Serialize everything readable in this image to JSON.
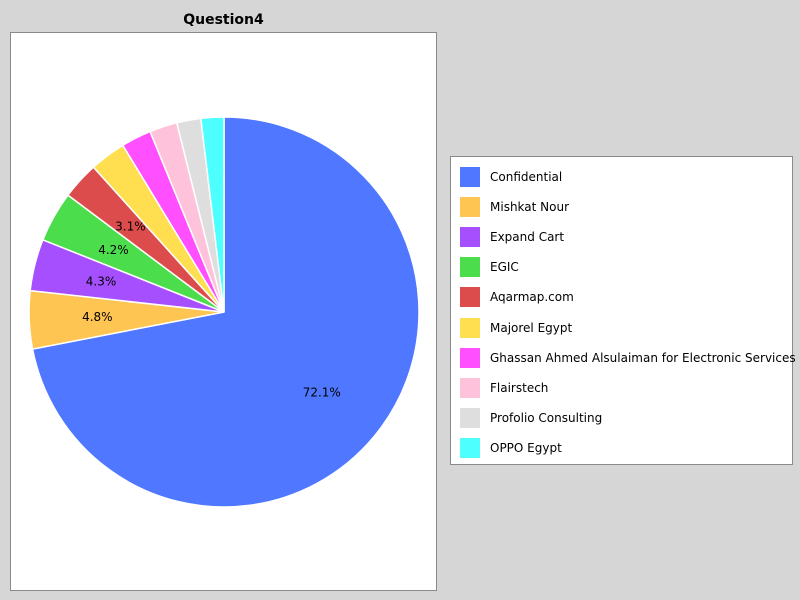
{
  "chart_data": {
    "type": "pie",
    "title": "Question4",
    "start_angle_deg": 90,
    "direction": "clockwise",
    "slices": [
      {
        "label": "Confidential",
        "value": 72.1,
        "color": "#4f77ff",
        "data_label": "72.1%"
      },
      {
        "label": "Mishkat Nour",
        "value": 4.8,
        "color": "#ffc553",
        "data_label": "4.8%"
      },
      {
        "label": "Expand Cart",
        "value": 4.3,
        "color": "#a64fff",
        "data_label": "4.3%"
      },
      {
        "label": "EGIC",
        "value": 4.2,
        "color": "#4cdd4c",
        "data_label": "4.2%"
      },
      {
        "label": "Aqarmap.com",
        "value": 3.1,
        "color": "#dc4c4c",
        "data_label": "3.1%"
      },
      {
        "label": "Majorel Egypt",
        "value": 3.0,
        "color": "#ffdf4f",
        "data_label": ""
      },
      {
        "label": "Ghassan Ahmed Alsulaiman for Electronic Services",
        "value": 2.5,
        "color": "#ff4fff",
        "data_label": ""
      },
      {
        "label": "Flairstech",
        "value": 2.3,
        "color": "#ffc2db",
        "data_label": ""
      },
      {
        "label": "Profolio Consulting",
        "value": 2.0,
        "color": "#dedede",
        "data_label": ""
      },
      {
        "label": "OPPO Egypt",
        "value": 1.9,
        "color": "#4dffff",
        "data_label": ""
      }
    ],
    "legend": "right"
  }
}
